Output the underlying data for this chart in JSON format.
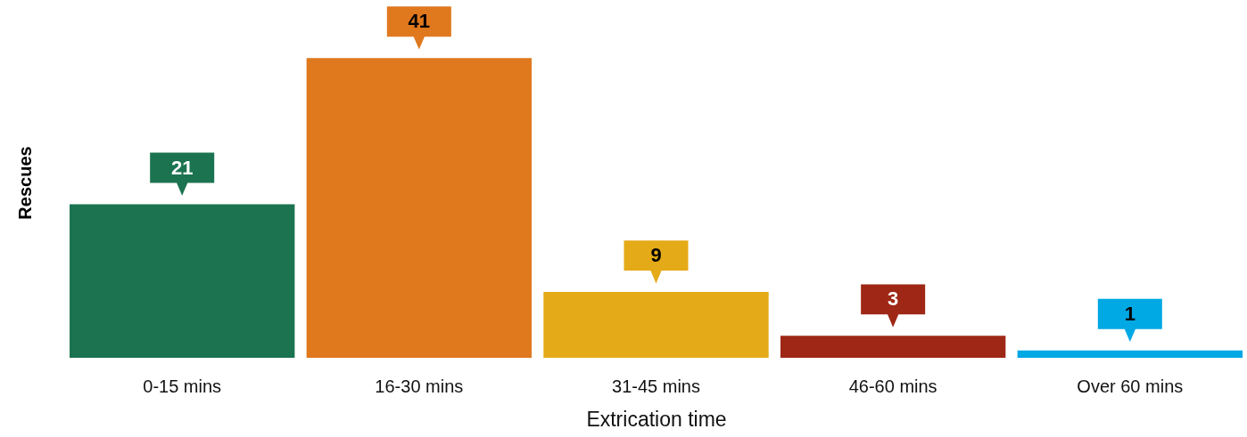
{
  "chart_data": {
    "type": "bar",
    "xlabel": "Extrication time",
    "ylabel": "Rescues",
    "categories": [
      "0-15 mins",
      "16-30 mins",
      "31-45 mins",
      "46-60 mins",
      "Over 60 mins"
    ],
    "values": [
      21,
      41,
      9,
      3,
      1
    ],
    "colors": [
      "#1b7350",
      "#e0781e",
      "#e5aa17",
      "#9e2716",
      "#00a8e4"
    ],
    "data_labels": true,
    "tick_labels": "x",
    "grid": false
  }
}
